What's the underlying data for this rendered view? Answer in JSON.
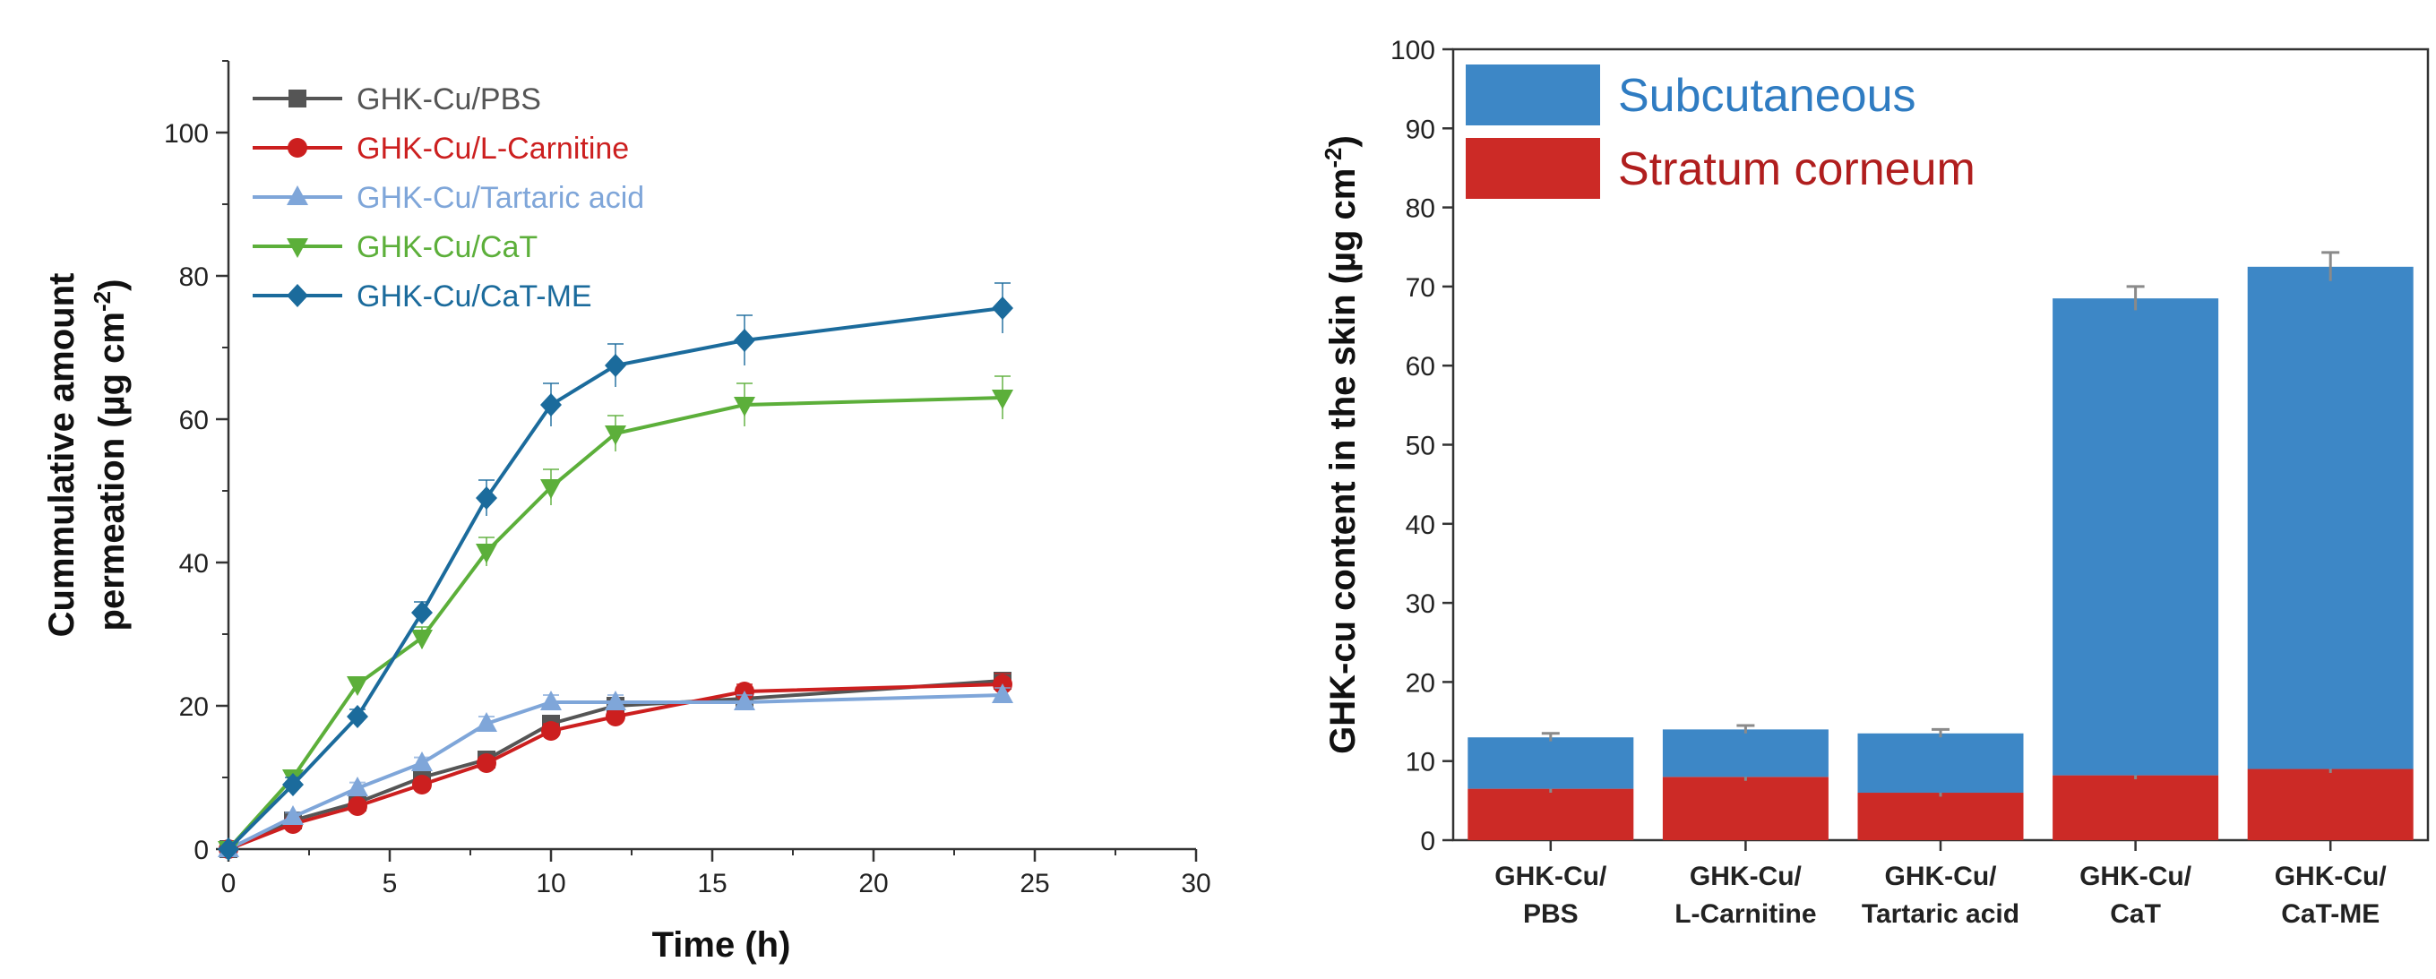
{
  "chart_data": [
    {
      "type": "line",
      "title": "",
      "xlabel": "Time (h)",
      "ylabel_lines": [
        "Cummulative amount",
        "permeation (µg cm",
        "-2",
        ")"
      ],
      "xlim": [
        0,
        30
      ],
      "ylim": [
        0,
        110
      ],
      "xticks": [
        "0",
        "5",
        "10",
        "15",
        "20",
        "25",
        "30"
      ],
      "yticks": [
        "0",
        "20",
        "40",
        "60",
        "80",
        "100"
      ],
      "legend_position": "top-left",
      "x": [
        0,
        2,
        4,
        6,
        8,
        10,
        12,
        16,
        24
      ],
      "series": [
        {
          "name": "GHK-Cu/PBS",
          "color": "#555555",
          "marker": "square",
          "values": [
            0,
            4,
            6.5,
            10,
            12.5,
            17.5,
            20,
            21,
            23.5
          ],
          "errors": [
            0,
            0.6,
            0.6,
            0.8,
            0.8,
            1,
            1,
            1,
            1
          ]
        },
        {
          "name": "GHK-Cu/L-Carnitine",
          "color": "#cc1f1f",
          "marker": "circle",
          "values": [
            0,
            3.5,
            6,
            9,
            12,
            16.5,
            18.5,
            22,
            23
          ],
          "errors": [
            0,
            0.6,
            0.6,
            0.8,
            0.8,
            1,
            1,
            1,
            1.5
          ]
        },
        {
          "name": "GHK-Cu/Tartaric acid",
          "color": "#7fa6d9",
          "marker": "triangle-up",
          "values": [
            0,
            4.5,
            8.5,
            12,
            17.5,
            20.5,
            20.5,
            20.5,
            21.5
          ],
          "errors": [
            0,
            0.6,
            0.8,
            0.8,
            1,
            1,
            1,
            1,
            1
          ]
        },
        {
          "name": "GHK-Cu/CaT",
          "color": "#5caf3a",
          "marker": "triangle-down",
          "values": [
            0,
            10,
            23,
            29.5,
            41.5,
            50.5,
            58,
            62,
            63
          ],
          "errors": [
            0,
            1,
            1,
            1.5,
            2,
            2.5,
            2.5,
            3,
            3
          ]
        },
        {
          "name": "GHK-Cu/CaT-ME",
          "color": "#1b6b9c",
          "marker": "diamond",
          "values": [
            0,
            9,
            18.5,
            33,
            49,
            62,
            67.5,
            71,
            75.5
          ],
          "errors": [
            0,
            1,
            1,
            1.5,
            2.5,
            3,
            3,
            3.5,
            3.5
          ]
        }
      ]
    },
    {
      "type": "bar",
      "stacked": true,
      "title": "",
      "xlabel": "",
      "ylabel_lines": [
        "GHK-cu content in the skin (µg cm",
        "-2",
        ")"
      ],
      "ylim": [
        0,
        100
      ],
      "yticks": [
        "0",
        "10",
        "20",
        "30",
        "40",
        "50",
        "60",
        "70",
        "80",
        "90",
        "100"
      ],
      "legend_position": "top-left",
      "categories": [
        [
          "GHK-Cu/",
          "PBS"
        ],
        [
          "GHK-Cu/",
          "L-Carnitine"
        ],
        [
          "GHK-Cu/",
          "Tartaric acid"
        ],
        [
          "GHK-Cu/",
          "CaT"
        ],
        [
          "GHK-Cu/",
          "CaT-ME"
        ]
      ],
      "series": [
        {
          "name": "Stratum corneum",
          "color": "#cc2a26",
          "label_color": "#b01e1e",
          "values": [
            6.5,
            8,
            6,
            8.2,
            9
          ],
          "errors": [
            0.5,
            0.5,
            0.5,
            0.5,
            0.5
          ]
        },
        {
          "name": "Subcutaneous",
          "color": "#3d87c6",
          "label_color": "#2f7cc2",
          "values": [
            6.5,
            6,
            7.5,
            60.3,
            63.5
          ],
          "errors": [
            0.5,
            0.5,
            0.5,
            1.5,
            1.8
          ]
        }
      ]
    }
  ]
}
